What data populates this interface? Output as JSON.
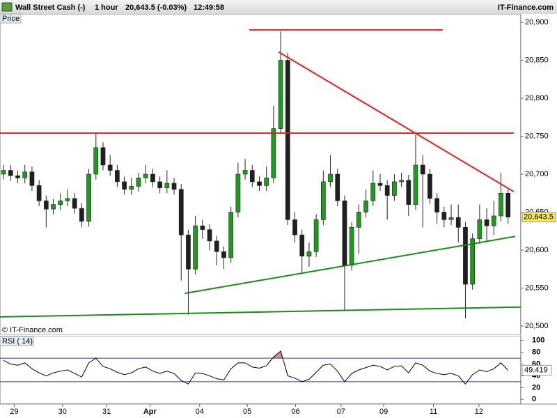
{
  "header": {
    "instrument": "Wall Street Cash (-)",
    "interval": "1 hour",
    "quote": "20,643.5 (-0.03%)",
    "time": "12:49:58",
    "brand": "IT-Finance.com"
  },
  "chart_data": [
    {
      "type": "candlestick",
      "panel_label": "Price",
      "copyright": "© IT-Finance.com",
      "up_color": "#1f9a1f",
      "down_color": "#202020",
      "candles": [
        [
          20700,
          20712,
          20693,
          20705
        ],
        [
          20705,
          20712,
          20691,
          20698
        ],
        [
          20698,
          20705,
          20688,
          20695
        ],
        [
          20695,
          20712,
          20688,
          20703
        ],
        [
          20703,
          20710,
          20678,
          20685
        ],
        [
          20685,
          20692,
          20658,
          20665
        ],
        [
          20665,
          20672,
          20630,
          20654
        ],
        [
          20654,
          20667,
          20647,
          20660
        ],
        [
          20660,
          20675,
          20653,
          20665
        ],
        [
          20665,
          20680,
          20658,
          20668
        ],
        [
          20668,
          20675,
          20648,
          20655
        ],
        [
          20655,
          20662,
          20630,
          20638
        ],
        [
          20638,
          20707,
          20631,
          20700
        ],
        [
          20700,
          20755,
          20693,
          20735
        ],
        [
          20735,
          20742,
          20705,
          20712
        ],
        [
          20712,
          20725,
          20698,
          20705
        ],
        [
          20705,
          20712,
          20683,
          20690
        ],
        [
          20690,
          20697,
          20673,
          20680
        ],
        [
          20680,
          20695,
          20673,
          20684
        ],
        [
          20684,
          20702,
          20677,
          20695
        ],
        [
          20695,
          20712,
          20688,
          20700
        ],
        [
          20700,
          20707,
          20683,
          20690
        ],
        [
          20690,
          20697,
          20675,
          20682
        ],
        [
          20682,
          20705,
          20675,
          20688
        ],
        [
          20688,
          20695,
          20673,
          20680
        ],
        [
          20680,
          20687,
          20560,
          20620
        ],
        [
          20620,
          20627,
          20515,
          20575
        ],
        [
          20575,
          20645,
          20568,
          20632
        ],
        [
          20632,
          20640,
          20615,
          20627
        ],
        [
          20627,
          20634,
          20600,
          20612
        ],
        [
          20612,
          20619,
          20580,
          20598
        ],
        [
          20598,
          20605,
          20575,
          20590
        ],
        [
          20590,
          20657,
          20583,
          20650
        ],
        [
          20650,
          20715,
          20643,
          20700
        ],
        [
          20700,
          20720,
          20693,
          20705
        ],
        [
          20705,
          20712,
          20683,
          20690
        ],
        [
          20690,
          20697,
          20678,
          20685
        ],
        [
          20685,
          20710,
          20678,
          20695
        ],
        [
          20695,
          20790,
          20688,
          20760
        ],
        [
          20760,
          20888,
          20753,
          20850
        ],
        [
          20850,
          20860,
          20633,
          20640
        ],
        [
          20640,
          20650,
          20610,
          20620
        ],
        [
          20620,
          20627,
          20570,
          20592
        ],
        [
          20592,
          20610,
          20578,
          20598
        ],
        [
          20598,
          20647,
          20591,
          20640
        ],
        [
          20640,
          20705,
          20633,
          20690
        ],
        [
          20690,
          20725,
          20683,
          20700
        ],
        [
          20700,
          20707,
          20658,
          20665
        ],
        [
          20665,
          20672,
          20520,
          20580
        ],
        [
          20580,
          20637,
          20573,
          20630
        ],
        [
          20630,
          20660,
          20595,
          20650
        ],
        [
          20650,
          20680,
          20643,
          20665
        ],
        [
          20665,
          20705,
          20658,
          20688
        ],
        [
          20688,
          20700,
          20678,
          20685
        ],
        [
          20685,
          20692,
          20640,
          20672
        ],
        [
          20672,
          20700,
          20665,
          20690
        ],
        [
          20690,
          20702,
          20683,
          20692
        ],
        [
          20692,
          20699,
          20645,
          20660
        ],
        [
          20660,
          20752,
          20653,
          20712
        ],
        [
          20712,
          20725,
          20630,
          20700
        ],
        [
          20700,
          20707,
          20661,
          20668
        ],
        [
          20668,
          20675,
          20635,
          20650
        ],
        [
          20650,
          20657,
          20630,
          20640
        ],
        [
          20640,
          20660,
          20633,
          20643
        ],
        [
          20643,
          20660,
          20610,
          20630
        ],
        [
          20630,
          20637,
          20510,
          20555
        ],
        [
          20555,
          20622,
          20548,
          20615
        ],
        [
          20615,
          20660,
          20608,
          20640
        ],
        [
          20640,
          20655,
          20610,
          20632
        ],
        [
          20632,
          20665,
          20620,
          20645
        ],
        [
          20645,
          20702,
          20638,
          20675
        ],
        [
          20675,
          20682,
          20635,
          20643.5
        ]
      ],
      "xlim": [
        0,
        73
      ],
      "xticks": [
        {
          "value": 2,
          "label": "29"
        },
        {
          "value": 8.8,
          "label": "30"
        },
        {
          "value": 15,
          "label": "31"
        },
        {
          "value": 21.1,
          "label": "Apr"
        },
        {
          "value": 28.1,
          "label": "04"
        },
        {
          "value": 34.8,
          "label": "05"
        },
        {
          "value": 41.6,
          "label": "06"
        },
        {
          "value": 48,
          "label": "07"
        },
        {
          "value": 54,
          "label": "09"
        },
        {
          "value": 61,
          "label": "11"
        },
        {
          "value": 67.4,
          "label": "12"
        }
      ],
      "ylim": [
        20489,
        20911
      ],
      "yticks": [
        {
          "value": 20500,
          "label": "20,500"
        },
        {
          "value": 20550,
          "label": "20,550"
        },
        {
          "value": 20600,
          "label": "20,600"
        },
        {
          "value": 20650,
          "label": "20,650"
        },
        {
          "value": 20700,
          "label": "20,700"
        },
        {
          "value": 20750,
          "label": "20,750"
        },
        {
          "value": 20800,
          "label": "20,800"
        },
        {
          "value": 20850,
          "label": "20,850"
        },
        {
          "value": 20900,
          "label": "20,900"
        }
      ],
      "last": {
        "value": 20643.5,
        "label": "20,643.5"
      },
      "lines": [
        {
          "color": "#e02020",
          "points": [
            [
              35.1,
              20890
            ],
            [
              62.3,
              20890
            ]
          ]
        },
        {
          "color": "#e02020",
          "points": [
            [
              0,
              20754
            ],
            [
              72.3,
              20754
            ]
          ]
        },
        {
          "color": "#e02020",
          "points": [
            [
              39.2,
              20861
            ],
            [
              72.3,
              20677
            ]
          ]
        },
        {
          "color": "#1a8a1a",
          "points": [
            [
              26.0,
              20543
            ],
            [
              72.5,
              20618
            ]
          ]
        },
        {
          "color": "#1a8a1a",
          "points": [
            [
              0,
              20512
            ],
            [
              73.3,
              20525
            ]
          ]
        }
      ]
    },
    {
      "type": "line",
      "panel_label": "RSI ( 14)",
      "color": "#000000",
      "values": [
        66,
        60,
        58,
        62,
        52,
        45,
        40,
        45,
        48,
        50,
        44,
        38,
        62,
        70,
        56,
        52,
        46,
        42,
        45,
        52,
        55,
        48,
        44,
        48,
        44,
        32,
        26,
        45,
        44,
        40,
        35,
        33,
        52,
        62,
        62,
        55,
        53,
        57,
        72,
        82,
        40,
        36,
        30,
        34,
        46,
        58,
        60,
        48,
        30,
        44,
        50,
        54,
        58,
        56,
        50,
        56,
        57,
        45,
        62,
        58,
        48,
        44,
        42,
        44,
        40,
        26,
        42,
        50,
        47,
        52,
        62,
        49.419
      ],
      "xlim": [
        0,
        73
      ],
      "ylim": [
        -8,
        108
      ],
      "yticks": [
        0,
        20,
        40,
        60,
        80,
        100
      ],
      "levels": [
        30,
        70
      ],
      "level_color": "#3030a0",
      "overbought_fill": "#d09090",
      "last": 49.419
    }
  ]
}
